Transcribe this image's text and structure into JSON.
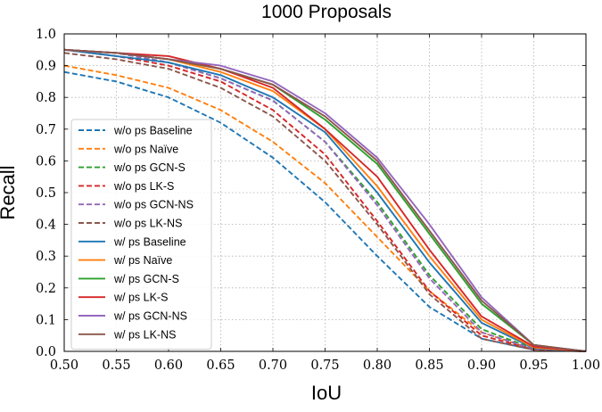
{
  "chart_data": {
    "type": "line",
    "title": "1000 Proposals",
    "xlabel": "IoU",
    "ylabel": "Recall",
    "xlim": [
      0.5,
      1.0
    ],
    "ylim": [
      0.0,
      1.0
    ],
    "grid": true,
    "legend_position": "middle-left",
    "x": [
      0.5,
      0.55,
      0.6,
      0.65,
      0.7,
      0.75,
      0.8,
      0.85,
      0.9,
      0.95,
      1.0
    ],
    "x_tick_labels": [
      "0.50",
      "0.55",
      "0.60",
      "0.65",
      "0.70",
      "0.75",
      "0.80",
      "0.85",
      "0.90",
      "0.95",
      "1.00"
    ],
    "y_ticks": [
      0.0,
      0.1,
      0.2,
      0.3,
      0.4,
      0.5,
      0.6,
      0.7,
      0.8,
      0.9,
      1.0
    ],
    "y_tick_labels": [
      "0.0",
      "0.1",
      "0.2",
      "0.3",
      "0.4",
      "0.5",
      "0.6",
      "0.7",
      "0.8",
      "0.9",
      "1.0"
    ],
    "series": [
      {
        "name": "w/o ps Baseline",
        "color": "#1f77b4",
        "dashed": true,
        "values": [
          0.88,
          0.85,
          0.8,
          0.72,
          0.61,
          0.47,
          0.3,
          0.14,
          0.04,
          0.005,
          0.0
        ]
      },
      {
        "name": "w/o ps Naïve",
        "color": "#ff7f0e",
        "dashed": true,
        "values": [
          0.9,
          0.87,
          0.83,
          0.76,
          0.66,
          0.53,
          0.36,
          0.19,
          0.06,
          0.005,
          0.0
        ]
      },
      {
        "name": "w/o ps GCN-S",
        "color": "#2ca02c",
        "dashed": true,
        "values": [
          0.95,
          0.94,
          0.91,
          0.86,
          0.79,
          0.66,
          0.47,
          0.24,
          0.07,
          0.008,
          0.0
        ]
      },
      {
        "name": "w/o ps LK-S",
        "color": "#d62728",
        "dashed": true,
        "values": [
          0.95,
          0.93,
          0.9,
          0.85,
          0.76,
          0.62,
          0.41,
          0.19,
          0.05,
          0.006,
          0.0
        ]
      },
      {
        "name": "w/o ps GCN-NS",
        "color": "#9467bd",
        "dashed": true,
        "values": [
          0.95,
          0.94,
          0.91,
          0.86,
          0.79,
          0.66,
          0.46,
          0.23,
          0.06,
          0.007,
          0.0
        ]
      },
      {
        "name": "w/o ps LK-NS",
        "color": "#8c564b",
        "dashed": true,
        "values": [
          0.94,
          0.92,
          0.89,
          0.83,
          0.74,
          0.6,
          0.4,
          0.18,
          0.04,
          0.005,
          0.0
        ]
      },
      {
        "name": "w/ ps Baseline",
        "color": "#1f77b4",
        "dashed": false,
        "values": [
          0.95,
          0.93,
          0.91,
          0.87,
          0.8,
          0.69,
          0.5,
          0.28,
          0.09,
          0.01,
          0.0
        ]
      },
      {
        "name": "w/ ps Naïve",
        "color": "#ff7f0e",
        "dashed": false,
        "values": [
          0.95,
          0.94,
          0.92,
          0.88,
          0.82,
          0.7,
          0.52,
          0.3,
          0.1,
          0.012,
          0.0
        ]
      },
      {
        "name": "w/ ps GCN-S",
        "color": "#2ca02c",
        "dashed": false,
        "values": [
          0.95,
          0.94,
          0.92,
          0.89,
          0.84,
          0.73,
          0.59,
          0.37,
          0.15,
          0.02,
          0.0
        ]
      },
      {
        "name": "w/ ps LK-S",
        "color": "#d62728",
        "dashed": false,
        "values": [
          0.95,
          0.94,
          0.93,
          0.89,
          0.83,
          0.7,
          0.55,
          0.32,
          0.11,
          0.015,
          0.0
        ]
      },
      {
        "name": "w/ ps GCN-NS",
        "color": "#9467bd",
        "dashed": false,
        "values": [
          0.95,
          0.94,
          0.92,
          0.9,
          0.85,
          0.75,
          0.61,
          0.4,
          0.17,
          0.02,
          0.0
        ]
      },
      {
        "name": "w/ ps LK-NS",
        "color": "#8c564b",
        "dashed": false,
        "values": [
          0.95,
          0.94,
          0.92,
          0.89,
          0.84,
          0.74,
          0.6,
          0.38,
          0.16,
          0.02,
          0.0
        ]
      }
    ]
  }
}
